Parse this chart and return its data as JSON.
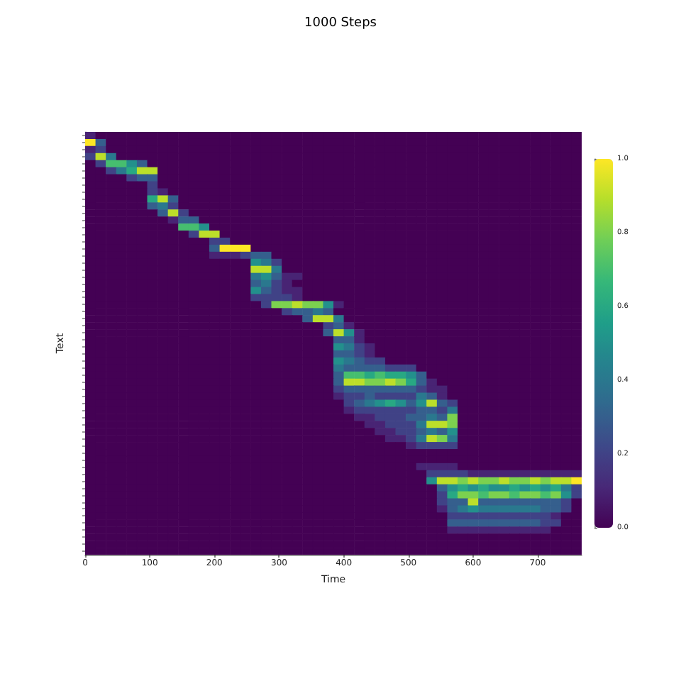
{
  "chart_data": {
    "type": "heatmap",
    "title": "1000 Steps",
    "xlabel": "Time",
    "ylabel": "Text",
    "x": [
      8,
      24,
      40,
      56,
      72,
      88,
      104,
      120,
      136,
      152,
      168,
      184,
      200,
      216,
      232,
      248,
      264,
      280,
      296,
      312,
      328,
      344,
      360,
      376,
      392,
      408,
      424,
      440,
      456,
      472,
      488,
      504,
      520,
      536,
      552,
      568,
      584,
      600,
      616,
      632,
      648,
      664,
      680,
      696,
      712,
      728,
      744,
      760
    ],
    "xlim": [
      0,
      768
    ],
    "xticks": [
      0,
      100,
      200,
      300,
      400,
      500,
      600,
      700
    ],
    "y_categories": [
      null,
      null,
      null,
      null,
      null,
      null,
      null,
      null,
      null,
      null,
      null,
      null,
      null,
      null,
      null,
      null,
      null,
      null,
      null,
      null,
      null,
      null,
      null,
      null,
      null,
      null,
      null,
      null,
      null,
      null,
      null,
      null,
      null,
      null,
      null,
      null,
      null,
      null,
      null,
      null,
      null,
      null,
      null,
      null,
      null,
      null,
      null,
      null,
      null,
      null,
      null,
      null,
      null,
      null,
      null,
      null,
      null,
      null,
      null,
      null
    ],
    "clim": [
      0,
      1
    ],
    "cticks": [
      {
        "value": 0,
        "label": "0.0"
      },
      0.2,
      0.4,
      0.6,
      0.8,
      {
        "value": 1,
        "label": "1.0"
      }
    ],
    "cells": [
      [
        0.1,
        0,
        0,
        0,
        0,
        0,
        0,
        0,
        0,
        0,
        0,
        0,
        0,
        0,
        0,
        0,
        0,
        0,
        0,
        0,
        0,
        0,
        0,
        0,
        0,
        0,
        0,
        0,
        0,
        0,
        0,
        0,
        0,
        0,
        0,
        0,
        0,
        0,
        0,
        0,
        0,
        0,
        0,
        0,
        0,
        0,
        0,
        0
      ],
      [
        1,
        0.3,
        0,
        0,
        0,
        0,
        0,
        0,
        0,
        0,
        0,
        0,
        0,
        0,
        0,
        0,
        0,
        0,
        0,
        0,
        0,
        0,
        0,
        0,
        0,
        0,
        0,
        0,
        0,
        0,
        0,
        0,
        0,
        0,
        0,
        0,
        0,
        0,
        0,
        0,
        0,
        0,
        0,
        0,
        0,
        0,
        0,
        0
      ],
      [
        0.1,
        0.2,
        0,
        0,
        0,
        0,
        0,
        0,
        0,
        0,
        0,
        0,
        0,
        0,
        0,
        0,
        0,
        0,
        0,
        0,
        0,
        0,
        0,
        0,
        0,
        0,
        0,
        0,
        0,
        0,
        0,
        0,
        0,
        0,
        0,
        0,
        0,
        0,
        0,
        0,
        0,
        0,
        0,
        0,
        0,
        0,
        0,
        0
      ],
      [
        0.2,
        0.9,
        0.4,
        0,
        0,
        0,
        0,
        0,
        0,
        0,
        0,
        0,
        0,
        0,
        0,
        0,
        0,
        0,
        0,
        0,
        0,
        0,
        0,
        0,
        0,
        0,
        0,
        0,
        0,
        0,
        0,
        0,
        0,
        0,
        0,
        0,
        0,
        0,
        0,
        0,
        0,
        0,
        0,
        0,
        0,
        0,
        0,
        0
      ],
      [
        0,
        0.2,
        0.7,
        0.7,
        0.5,
        0.3,
        0,
        0,
        0,
        0,
        0,
        0,
        0,
        0,
        0,
        0,
        0,
        0,
        0,
        0,
        0,
        0,
        0,
        0,
        0,
        0,
        0,
        0,
        0,
        0,
        0,
        0,
        0,
        0,
        0,
        0,
        0,
        0,
        0,
        0,
        0,
        0,
        0,
        0,
        0,
        0,
        0,
        0
      ],
      [
        0,
        0,
        0.2,
        0.4,
        0.6,
        0.9,
        0.9,
        0,
        0,
        0,
        0,
        0,
        0,
        0,
        0,
        0,
        0,
        0,
        0,
        0,
        0,
        0,
        0,
        0,
        0,
        0,
        0,
        0,
        0,
        0,
        0,
        0,
        0,
        0,
        0,
        0,
        0,
        0,
        0,
        0,
        0,
        0,
        0,
        0,
        0,
        0,
        0,
        0
      ],
      [
        0,
        0,
        0,
        0,
        0.2,
        0.3,
        0.3,
        0,
        0,
        0,
        0,
        0,
        0,
        0,
        0,
        0,
        0,
        0,
        0,
        0,
        0,
        0,
        0,
        0,
        0,
        0,
        0,
        0,
        0,
        0,
        0,
        0,
        0,
        0,
        0,
        0,
        0,
        0,
        0,
        0,
        0,
        0,
        0,
        0,
        0,
        0,
        0,
        0
      ],
      [
        0,
        0,
        0,
        0,
        0,
        0,
        0.2,
        0,
        0,
        0,
        0,
        0,
        0,
        0,
        0,
        0,
        0,
        0,
        0,
        0,
        0,
        0,
        0,
        0,
        0,
        0,
        0,
        0,
        0,
        0,
        0,
        0,
        0,
        0,
        0,
        0,
        0,
        0,
        0,
        0,
        0,
        0,
        0,
        0,
        0,
        0,
        0,
        0
      ],
      [
        0,
        0,
        0,
        0,
        0,
        0,
        0.2,
        0.1,
        0,
        0,
        0,
        0,
        0,
        0,
        0,
        0,
        0,
        0,
        0,
        0,
        0,
        0,
        0,
        0,
        0,
        0,
        0,
        0,
        0,
        0,
        0,
        0,
        0,
        0,
        0,
        0,
        0,
        0,
        0,
        0,
        0,
        0,
        0,
        0,
        0,
        0,
        0,
        0
      ],
      [
        0,
        0,
        0,
        0,
        0,
        0,
        0.6,
        0.9,
        0.3,
        0,
        0,
        0,
        0,
        0,
        0,
        0,
        0,
        0,
        0,
        0,
        0,
        0,
        0,
        0,
        0,
        0,
        0,
        0,
        0,
        0,
        0,
        0,
        0,
        0,
        0,
        0,
        0,
        0,
        0,
        0,
        0,
        0,
        0,
        0,
        0,
        0,
        0,
        0
      ],
      [
        0,
        0,
        0,
        0,
        0,
        0,
        0.3,
        0.4,
        0.2,
        0,
        0,
        0,
        0,
        0,
        0,
        0,
        0,
        0,
        0,
        0,
        0,
        0,
        0,
        0,
        0,
        0,
        0,
        0,
        0,
        0,
        0,
        0,
        0,
        0,
        0,
        0,
        0,
        0,
        0,
        0,
        0,
        0,
        0,
        0,
        0,
        0,
        0,
        0
      ],
      [
        0,
        0,
        0,
        0,
        0,
        0,
        0,
        0.3,
        0.9,
        0.2,
        0,
        0,
        0,
        0,
        0,
        0,
        0,
        0,
        0,
        0,
        0,
        0,
        0,
        0,
        0,
        0,
        0,
        0,
        0,
        0,
        0,
        0,
        0,
        0,
        0,
        0,
        0,
        0,
        0,
        0,
        0,
        0,
        0,
        0,
        0,
        0,
        0,
        0
      ],
      [
        0,
        0,
        0,
        0,
        0,
        0,
        0,
        0,
        0.1,
        0.3,
        0.3,
        0,
        0,
        0,
        0,
        0,
        0,
        0,
        0,
        0,
        0,
        0,
        0,
        0,
        0,
        0,
        0,
        0,
        0,
        0,
        0,
        0,
        0,
        0,
        0,
        0,
        0,
        0,
        0,
        0,
        0,
        0,
        0,
        0,
        0,
        0,
        0,
        0
      ],
      [
        0,
        0,
        0,
        0,
        0,
        0,
        0,
        0,
        0,
        0.7,
        0.7,
        0.5,
        0,
        0,
        0,
        0,
        0,
        0,
        0,
        0,
        0,
        0,
        0,
        0,
        0,
        0,
        0,
        0,
        0,
        0,
        0,
        0,
        0,
        0,
        0,
        0,
        0,
        0,
        0,
        0,
        0,
        0,
        0,
        0,
        0,
        0,
        0,
        0
      ],
      [
        0,
        0,
        0,
        0,
        0,
        0,
        0,
        0,
        0,
        0,
        0.2,
        0.9,
        0.9,
        0,
        0,
        0,
        0,
        0,
        0,
        0,
        0,
        0,
        0,
        0,
        0,
        0,
        0,
        0,
        0,
        0,
        0,
        0,
        0,
        0,
        0,
        0,
        0,
        0,
        0,
        0,
        0,
        0,
        0,
        0,
        0,
        0,
        0,
        0
      ],
      [
        0,
        0,
        0,
        0,
        0,
        0,
        0,
        0,
        0,
        0,
        0,
        0,
        0.2,
        0.2,
        0,
        0,
        0,
        0,
        0,
        0,
        0,
        0,
        0,
        0,
        0,
        0,
        0,
        0,
        0,
        0,
        0,
        0,
        0,
        0,
        0,
        0,
        0,
        0,
        0,
        0,
        0,
        0,
        0,
        0,
        0,
        0,
        0,
        0
      ],
      [
        0,
        0,
        0,
        0,
        0,
        0,
        0,
        0,
        0,
        0,
        0,
        0,
        0.3,
        1,
        1,
        1,
        0,
        0,
        0,
        0,
        0,
        0,
        0,
        0,
        0,
        0,
        0,
        0,
        0,
        0,
        0,
        0,
        0,
        0,
        0,
        0,
        0,
        0,
        0,
        0,
        0,
        0,
        0,
        0,
        0,
        0,
        0,
        0
      ],
      [
        0,
        0,
        0,
        0,
        0,
        0,
        0,
        0,
        0,
        0,
        0,
        0,
        0.1,
        0.1,
        0.1,
        0.2,
        0.3,
        0.3,
        0,
        0,
        0,
        0,
        0,
        0,
        0,
        0,
        0,
        0,
        0,
        0,
        0,
        0,
        0,
        0,
        0,
        0,
        0,
        0,
        0,
        0,
        0,
        0,
        0,
        0,
        0,
        0,
        0,
        0
      ],
      [
        0,
        0,
        0,
        0,
        0,
        0,
        0,
        0,
        0,
        0,
        0,
        0,
        0,
        0,
        0,
        0,
        0.5,
        0.4,
        0.2,
        0,
        0,
        0,
        0,
        0,
        0,
        0,
        0,
        0,
        0,
        0,
        0,
        0,
        0,
        0,
        0,
        0,
        0,
        0,
        0,
        0,
        0,
        0,
        0,
        0,
        0,
        0,
        0,
        0
      ],
      [
        0,
        0,
        0,
        0,
        0,
        0,
        0,
        0,
        0,
        0,
        0,
        0,
        0,
        0,
        0,
        0,
        0.9,
        0.9,
        0.4,
        0,
        0,
        0,
        0,
        0,
        0,
        0,
        0,
        0,
        0,
        0,
        0,
        0,
        0,
        0,
        0,
        0,
        0,
        0,
        0,
        0,
        0,
        0,
        0,
        0,
        0,
        0,
        0,
        0
      ],
      [
        0,
        0,
        0,
        0,
        0,
        0,
        0,
        0,
        0,
        0,
        0,
        0,
        0,
        0,
        0,
        0,
        0.4,
        0.5,
        0.3,
        0.1,
        0.1,
        0,
        0,
        0,
        0,
        0,
        0,
        0,
        0,
        0,
        0,
        0,
        0,
        0,
        0,
        0,
        0,
        0,
        0,
        0,
        0,
        0,
        0,
        0,
        0,
        0,
        0,
        0
      ],
      [
        0,
        0,
        0,
        0,
        0,
        0,
        0,
        0,
        0,
        0,
        0,
        0,
        0,
        0,
        0,
        0,
        0.3,
        0.4,
        0.2,
        0.1,
        0,
        0,
        0,
        0,
        0,
        0,
        0,
        0,
        0,
        0,
        0,
        0,
        0,
        0,
        0,
        0,
        0,
        0,
        0,
        0,
        0,
        0,
        0,
        0,
        0,
        0,
        0,
        0
      ],
      [
        0,
        0,
        0,
        0,
        0,
        0,
        0,
        0,
        0,
        0,
        0,
        0,
        0,
        0,
        0,
        0,
        0.5,
        0.3,
        0.2,
        0.1,
        0.1,
        0,
        0,
        0,
        0,
        0,
        0,
        0,
        0,
        0,
        0,
        0,
        0,
        0,
        0,
        0,
        0,
        0,
        0,
        0,
        0,
        0,
        0,
        0,
        0,
        0,
        0,
        0
      ],
      [
        0,
        0,
        0,
        0,
        0,
        0,
        0,
        0,
        0,
        0,
        0,
        0,
        0,
        0,
        0,
        0,
        0.2,
        0.2,
        0.2,
        0.2,
        0.1,
        0,
        0,
        0,
        0,
        0,
        0,
        0,
        0,
        0,
        0,
        0,
        0,
        0,
        0,
        0,
        0,
        0,
        0,
        0,
        0,
        0,
        0,
        0,
        0,
        0,
        0,
        0
      ],
      [
        0,
        0,
        0,
        0,
        0,
        0,
        0,
        0,
        0,
        0,
        0,
        0,
        0,
        0,
        0,
        0,
        0,
        0.2,
        0.8,
        0.8,
        0.9,
        0.8,
        0.8,
        0.5,
        0.1,
        0,
        0,
        0,
        0,
        0,
        0,
        0,
        0,
        0,
        0,
        0,
        0,
        0,
        0,
        0,
        0,
        0,
        0,
        0,
        0,
        0,
        0,
        0
      ],
      [
        0,
        0,
        0,
        0,
        0,
        0,
        0,
        0,
        0,
        0,
        0,
        0,
        0,
        0,
        0,
        0,
        0,
        0,
        0,
        0.2,
        0.3,
        0.3,
        0.4,
        0.3,
        0,
        0,
        0,
        0,
        0,
        0,
        0,
        0,
        0,
        0,
        0,
        0,
        0,
        0,
        0,
        0,
        0,
        0,
        0,
        0,
        0,
        0,
        0,
        0
      ],
      [
        0,
        0,
        0,
        0,
        0,
        0,
        0,
        0,
        0,
        0,
        0,
        0,
        0,
        0,
        0,
        0,
        0,
        0,
        0,
        0,
        0,
        0.3,
        0.9,
        0.9,
        0.4,
        0,
        0,
        0,
        0,
        0,
        0,
        0,
        0,
        0,
        0,
        0,
        0,
        0,
        0,
        0,
        0,
        0,
        0,
        0,
        0,
        0,
        0,
        0
      ],
      [
        0,
        0,
        0,
        0,
        0,
        0,
        0,
        0,
        0,
        0,
        0,
        0,
        0,
        0,
        0,
        0,
        0,
        0,
        0,
        0,
        0,
        0,
        0,
        0.2,
        0.3,
        0.1,
        0,
        0,
        0,
        0,
        0,
        0,
        0,
        0,
        0,
        0,
        0,
        0,
        0,
        0,
        0,
        0,
        0,
        0,
        0,
        0,
        0,
        0
      ],
      [
        0,
        0,
        0,
        0,
        0,
        0,
        0,
        0,
        0,
        0,
        0,
        0,
        0,
        0,
        0,
        0,
        0,
        0,
        0,
        0,
        0,
        0,
        0,
        0.3,
        0.9,
        0.5,
        0.1,
        0,
        0,
        0,
        0,
        0,
        0,
        0,
        0,
        0,
        0,
        0,
        0,
        0,
        0,
        0,
        0,
        0,
        0,
        0,
        0,
        0
      ],
      [
        0,
        0,
        0,
        0,
        0,
        0,
        0,
        0,
        0,
        0,
        0,
        0,
        0,
        0,
        0,
        0,
        0,
        0,
        0,
        0,
        0,
        0,
        0,
        0,
        0.3,
        0.3,
        0.1,
        0,
        0,
        0,
        0,
        0,
        0,
        0,
        0,
        0,
        0,
        0,
        0,
        0,
        0,
        0,
        0,
        0,
        0,
        0,
        0,
        0
      ],
      [
        0,
        0,
        0,
        0,
        0,
        0,
        0,
        0,
        0,
        0,
        0,
        0,
        0,
        0,
        0,
        0,
        0,
        0,
        0,
        0,
        0,
        0,
        0,
        0,
        0.5,
        0.4,
        0.2,
        0.1,
        0,
        0,
        0,
        0,
        0,
        0,
        0,
        0,
        0,
        0,
        0,
        0,
        0,
        0,
        0,
        0,
        0,
        0,
        0,
        0
      ],
      [
        0,
        0,
        0,
        0,
        0,
        0,
        0,
        0,
        0,
        0,
        0,
        0,
        0,
        0,
        0,
        0,
        0,
        0,
        0,
        0,
        0,
        0,
        0,
        0,
        0.3,
        0.3,
        0.2,
        0.1,
        0,
        0,
        0,
        0,
        0,
        0,
        0,
        0,
        0,
        0,
        0,
        0,
        0,
        0,
        0,
        0,
        0,
        0,
        0,
        0
      ],
      [
        0,
        0,
        0,
        0,
        0,
        0,
        0,
        0,
        0,
        0,
        0,
        0,
        0,
        0,
        0,
        0,
        0,
        0,
        0,
        0,
        0,
        0,
        0,
        0,
        0.5,
        0.4,
        0.3,
        0.2,
        0.2,
        0,
        0,
        0,
        0,
        0,
        0,
        0,
        0,
        0,
        0,
        0,
        0,
        0,
        0,
        0,
        0,
        0,
        0,
        0
      ],
      [
        0,
        0,
        0,
        0,
        0,
        0,
        0,
        0,
        0,
        0,
        0,
        0,
        0,
        0,
        0,
        0,
        0,
        0,
        0,
        0,
        0,
        0,
        0,
        0,
        0.4,
        0.3,
        0.3,
        0.3,
        0.3,
        0.2,
        0.2,
        0.2,
        0,
        0,
        0,
        0,
        0,
        0,
        0,
        0,
        0,
        0,
        0,
        0,
        0,
        0,
        0,
        0
      ],
      [
        0,
        0,
        0,
        0,
        0,
        0,
        0,
        0,
        0,
        0,
        0,
        0,
        0,
        0,
        0,
        0,
        0,
        0,
        0,
        0,
        0,
        0,
        0,
        0,
        0.3,
        0.7,
        0.7,
        0.6,
        0.7,
        0.6,
        0.6,
        0.5,
        0.3,
        0,
        0,
        0,
        0,
        0,
        0,
        0,
        0,
        0,
        0,
        0,
        0,
        0,
        0,
        0
      ],
      [
        0,
        0,
        0,
        0,
        0,
        0,
        0,
        0,
        0,
        0,
        0,
        0,
        0,
        0,
        0,
        0,
        0,
        0,
        0,
        0,
        0,
        0,
        0,
        0,
        0.3,
        0.9,
        0.9,
        0.8,
        0.8,
        0.9,
        0.8,
        0.6,
        0.3,
        0.1,
        0,
        0,
        0,
        0,
        0,
        0,
        0,
        0,
        0,
        0,
        0,
        0,
        0,
        0
      ],
      [
        0,
        0,
        0,
        0,
        0,
        0,
        0,
        0,
        0,
        0,
        0,
        0,
        0,
        0,
        0,
        0,
        0,
        0,
        0,
        0,
        0,
        0,
        0,
        0,
        0.2,
        0.3,
        0.3,
        0.3,
        0.3,
        0.3,
        0.3,
        0.3,
        0.2,
        0.1,
        0.1,
        0,
        0,
        0,
        0,
        0,
        0,
        0,
        0,
        0,
        0,
        0,
        0,
        0
      ],
      [
        0,
        0,
        0,
        0,
        0,
        0,
        0,
        0,
        0,
        0,
        0,
        0,
        0,
        0,
        0,
        0,
        0,
        0,
        0,
        0,
        0,
        0,
        0,
        0,
        0.1,
        0.2,
        0.2,
        0.3,
        0.2,
        0.2,
        0.2,
        0.2,
        0.4,
        0.3,
        0.1,
        0,
        0,
        0,
        0,
        0,
        0,
        0,
        0,
        0,
        0,
        0,
        0,
        0
      ],
      [
        0,
        0,
        0,
        0,
        0,
        0,
        0,
        0,
        0,
        0,
        0,
        0,
        0,
        0,
        0,
        0,
        0,
        0,
        0,
        0,
        0,
        0,
        0,
        0,
        0,
        0.2,
        0.3,
        0.4,
        0.5,
        0.6,
        0.5,
        0.3,
        0.5,
        0.9,
        0.3,
        0.2,
        0,
        0,
        0,
        0,
        0,
        0,
        0,
        0,
        0,
        0,
        0,
        0
      ],
      [
        0,
        0,
        0,
        0,
        0,
        0,
        0,
        0,
        0,
        0,
        0,
        0,
        0,
        0,
        0,
        0,
        0,
        0,
        0,
        0,
        0,
        0,
        0,
        0,
        0,
        0.1,
        0.2,
        0.2,
        0.2,
        0.2,
        0.2,
        0.2,
        0.3,
        0.3,
        0.2,
        0.4,
        0,
        0,
        0,
        0,
        0,
        0,
        0,
        0,
        0,
        0,
        0,
        0
      ],
      [
        0,
        0,
        0,
        0,
        0,
        0,
        0,
        0,
        0,
        0,
        0,
        0,
        0,
        0,
        0,
        0,
        0,
        0,
        0,
        0,
        0,
        0,
        0,
        0,
        0,
        0,
        0.1,
        0.1,
        0.2,
        0.2,
        0.2,
        0.3,
        0.3,
        0.4,
        0.3,
        0.8,
        0,
        0,
        0,
        0,
        0,
        0,
        0,
        0,
        0,
        0,
        0,
        0
      ],
      [
        0,
        0,
        0,
        0,
        0,
        0,
        0,
        0,
        0,
        0,
        0,
        0,
        0,
        0,
        0,
        0,
        0,
        0,
        0,
        0,
        0,
        0,
        0,
        0,
        0,
        0,
        0,
        0.1,
        0.1,
        0.2,
        0.2,
        0.2,
        0.4,
        0.9,
        0.9,
        0.8,
        0,
        0,
        0,
        0,
        0,
        0,
        0,
        0,
        0,
        0,
        0,
        0
      ],
      [
        0,
        0,
        0,
        0,
        0,
        0,
        0,
        0,
        0,
        0,
        0,
        0,
        0,
        0,
        0,
        0,
        0,
        0,
        0,
        0,
        0,
        0,
        0,
        0,
        0,
        0,
        0,
        0,
        0.1,
        0.1,
        0.2,
        0.2,
        0.3,
        0.4,
        0.3,
        0.5,
        0,
        0,
        0,
        0,
        0,
        0,
        0,
        0,
        0,
        0,
        0,
        0
      ],
      [
        0,
        0,
        0,
        0,
        0,
        0,
        0,
        0,
        0,
        0,
        0,
        0,
        0,
        0,
        0,
        0,
        0,
        0,
        0,
        0,
        0,
        0,
        0,
        0,
        0,
        0,
        0,
        0,
        0,
        0.1,
        0.1,
        0.2,
        0.4,
        0.9,
        0.8,
        0.4,
        0,
        0,
        0,
        0,
        0,
        0,
        0,
        0,
        0,
        0,
        0,
        0
      ],
      [
        0,
        0,
        0,
        0,
        0,
        0,
        0,
        0,
        0,
        0,
        0,
        0,
        0,
        0,
        0,
        0,
        0,
        0,
        0,
        0,
        0,
        0,
        0,
        0,
        0,
        0,
        0,
        0,
        0,
        0,
        0,
        0.1,
        0.2,
        0.2,
        0.2,
        0.2,
        0,
        0,
        0,
        0,
        0,
        0,
        0,
        0,
        0,
        0,
        0,
        0
      ],
      [
        0,
        0,
        0,
        0,
        0,
        0,
        0,
        0,
        0,
        0,
        0,
        0,
        0,
        0,
        0,
        0,
        0,
        0,
        0,
        0,
        0,
        0,
        0,
        0,
        0,
        0,
        0,
        0,
        0,
        0,
        0,
        0,
        0,
        0,
        0,
        0,
        0,
        0,
        0,
        0,
        0,
        0,
        0,
        0,
        0,
        0,
        0,
        0
      ],
      [
        0,
        0,
        0,
        0,
        0,
        0,
        0,
        0,
        0,
        0,
        0,
        0,
        0,
        0,
        0,
        0,
        0,
        0,
        0,
        0,
        0,
        0,
        0,
        0,
        0,
        0,
        0,
        0,
        0,
        0,
        0,
        0,
        0,
        0,
        0,
        0,
        0,
        0,
        0,
        0,
        0,
        0,
        0,
        0,
        0,
        0,
        0,
        0
      ],
      [
        0,
        0,
        0,
        0,
        0,
        0,
        0,
        0,
        0,
        0,
        0,
        0,
        0,
        0,
        0,
        0,
        0,
        0,
        0,
        0,
        0,
        0,
        0,
        0,
        0,
        0,
        0,
        0,
        0,
        0,
        0,
        0,
        0.1,
        0.1,
        0.1,
        0.1,
        0,
        0,
        0,
        0,
        0,
        0,
        0,
        0,
        0,
        0,
        0,
        0
      ],
      [
        0,
        0,
        0,
        0,
        0,
        0,
        0,
        0,
        0,
        0,
        0,
        0,
        0,
        0,
        0,
        0,
        0,
        0,
        0,
        0,
        0,
        0,
        0,
        0,
        0,
        0,
        0,
        0,
        0,
        0,
        0,
        0,
        0,
        0.2,
        0.2,
        0.2,
        0.2,
        0.1,
        0.1,
        0.1,
        0.1,
        0.1,
        0.1,
        0.1,
        0.1,
        0.1,
        0.1,
        0.1
      ],
      [
        0,
        0,
        0,
        0,
        0,
        0,
        0,
        0,
        0,
        0,
        0,
        0,
        0,
        0,
        0,
        0,
        0,
        0,
        0,
        0,
        0,
        0,
        0,
        0,
        0,
        0,
        0,
        0,
        0,
        0,
        0,
        0,
        0,
        0.5,
        0.9,
        0.9,
        0.8,
        0.9,
        0.8,
        0.8,
        0.9,
        0.8,
        0.8,
        0.9,
        0.8,
        0.9,
        0.9,
        1
      ],
      [
        0,
        0,
        0,
        0,
        0,
        0,
        0,
        0,
        0,
        0,
        0,
        0,
        0,
        0,
        0,
        0,
        0,
        0,
        0,
        0,
        0,
        0,
        0,
        0,
        0,
        0,
        0,
        0,
        0,
        0,
        0,
        0,
        0,
        0,
        0.3,
        0.5,
        0.6,
        0.5,
        0.6,
        0.5,
        0.5,
        0.6,
        0.5,
        0.6,
        0.5,
        0.6,
        0.4,
        0.2
      ],
      [
        0,
        0,
        0,
        0,
        0,
        0,
        0,
        0,
        0,
        0,
        0,
        0,
        0,
        0,
        0,
        0,
        0,
        0,
        0,
        0,
        0,
        0,
        0,
        0,
        0,
        0,
        0,
        0,
        0,
        0,
        0,
        0,
        0,
        0,
        0.2,
        0.6,
        0.8,
        0.8,
        0.7,
        0.8,
        0.8,
        0.7,
        0.8,
        0.8,
        0.7,
        0.8,
        0.5,
        0.2
      ],
      [
        0,
        0,
        0,
        0,
        0,
        0,
        0,
        0,
        0,
        0,
        0,
        0,
        0,
        0,
        0,
        0,
        0,
        0,
        0,
        0,
        0,
        0,
        0,
        0,
        0,
        0,
        0,
        0,
        0,
        0,
        0,
        0,
        0,
        0,
        0.2,
        0.3,
        0.3,
        0.9,
        0.3,
        0.3,
        0.3,
        0.3,
        0.3,
        0.3,
        0.3,
        0.3,
        0.2,
        0
      ],
      [
        0,
        0,
        0,
        0,
        0,
        0,
        0,
        0,
        0,
        0,
        0,
        0,
        0,
        0,
        0,
        0,
        0,
        0,
        0,
        0,
        0,
        0,
        0,
        0,
        0,
        0,
        0,
        0,
        0,
        0,
        0,
        0,
        0,
        0,
        0.1,
        0.3,
        0.4,
        0.5,
        0.4,
        0.4,
        0.4,
        0.4,
        0.4,
        0.4,
        0.3,
        0.3,
        0.2,
        0
      ],
      [
        0,
        0,
        0,
        0,
        0,
        0,
        0,
        0,
        0,
        0,
        0,
        0,
        0,
        0,
        0,
        0,
        0,
        0,
        0,
        0,
        0,
        0,
        0,
        0,
        0,
        0,
        0,
        0,
        0,
        0,
        0,
        0,
        0,
        0,
        0,
        0.2,
        0.2,
        0.2,
        0.2,
        0.2,
        0.2,
        0.2,
        0.2,
        0.2,
        0.2,
        0.1,
        0,
        0
      ],
      [
        0,
        0,
        0,
        0,
        0,
        0,
        0,
        0,
        0,
        0,
        0,
        0,
        0,
        0,
        0,
        0,
        0,
        0,
        0,
        0,
        0,
        0,
        0,
        0,
        0,
        0,
        0,
        0,
        0,
        0,
        0,
        0,
        0,
        0,
        0,
        0.3,
        0.3,
        0.3,
        0.3,
        0.3,
        0.3,
        0.3,
        0.3,
        0.3,
        0.2,
        0.2,
        0,
        0
      ],
      [
        0,
        0,
        0,
        0,
        0,
        0,
        0,
        0,
        0,
        0,
        0,
        0,
        0,
        0,
        0,
        0,
        0,
        0,
        0,
        0,
        0,
        0,
        0,
        0,
        0,
        0,
        0,
        0,
        0,
        0,
        0,
        0,
        0,
        0,
        0,
        0.1,
        0.1,
        0.1,
        0.1,
        0.1,
        0.1,
        0.1,
        0.1,
        0.1,
        0.1,
        0,
        0,
        0
      ],
      [
        0,
        0,
        0,
        0,
        0,
        0,
        0,
        0,
        0,
        0,
        0,
        0,
        0,
        0,
        0,
        0,
        0,
        0,
        0,
        0,
        0,
        0,
        0,
        0,
        0,
        0,
        0,
        0,
        0,
        0,
        0,
        0,
        0,
        0,
        0,
        0,
        0,
        0,
        0,
        0,
        0,
        0,
        0,
        0,
        0,
        0,
        0,
        0
      ],
      [
        0,
        0,
        0,
        0,
        0,
        0,
        0,
        0,
        0,
        0,
        0,
        0,
        0,
        0,
        0,
        0,
        0,
        0,
        0,
        0,
        0,
        0,
        0,
        0,
        0,
        0,
        0,
        0,
        0,
        0,
        0,
        0,
        0,
        0,
        0,
        0,
        0,
        0,
        0,
        0,
        0,
        0,
        0,
        0,
        0,
        0,
        0,
        0
      ],
      [
        0,
        0,
        0,
        0,
        0,
        0,
        0,
        0,
        0,
        0,
        0,
        0,
        0,
        0,
        0,
        0,
        0,
        0,
        0,
        0,
        0,
        0,
        0,
        0,
        0,
        0,
        0,
        0,
        0,
        0,
        0,
        0,
        0,
        0,
        0,
        0,
        0,
        0,
        0,
        0,
        0,
        0,
        0,
        0,
        0,
        0,
        0,
        0
      ]
    ]
  }
}
